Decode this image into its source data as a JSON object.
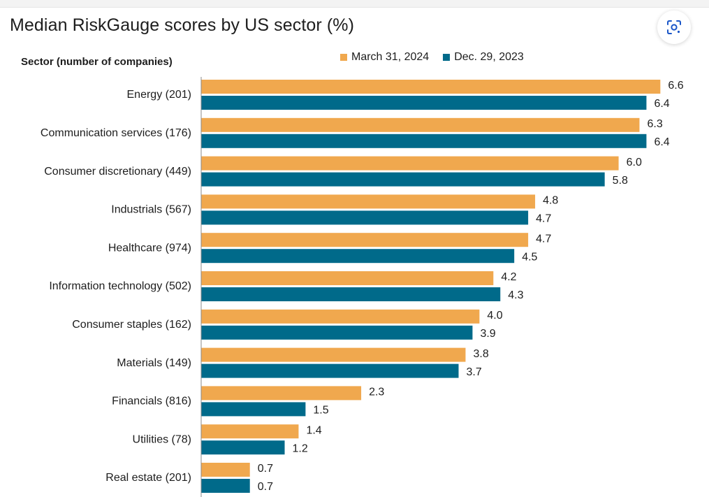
{
  "title": "Median RiskGauge scores by US sector (%)",
  "icons": {
    "lens": "google-lens-icon"
  },
  "chart_data": {
    "type": "bar",
    "orientation": "horizontal",
    "title": "Median RiskGauge scores by US sector (%)",
    "ylabel": "Sector (number of companies)",
    "xlim": [
      0,
      6.8
    ],
    "grid": false,
    "legend_position": "top",
    "categories": [
      "Energy (201)",
      "Communication services (176)",
      "Consumer discretionary (449)",
      "Industrials (567)",
      "Healthcare (974)",
      "Information technology (502)",
      "Consumer staples (162)",
      "Materials (149)",
      "Financials (816)",
      "Utilities (78)",
      "Real estate (201)"
    ],
    "series": [
      {
        "name": "March 31, 2024",
        "color": "#f0a84e",
        "values": [
          6.6,
          6.3,
          6.0,
          4.8,
          4.7,
          4.2,
          4.0,
          3.8,
          2.3,
          1.4,
          0.7
        ],
        "labels": [
          "6.6",
          "6.3",
          "6.0",
          "4.8",
          "4.7",
          "4.2",
          "4.0",
          "3.8",
          "2.3",
          "1.4",
          "0.7"
        ]
      },
      {
        "name": "Dec. 29, 2023",
        "color": "#006a8a",
        "values": [
          6.4,
          6.4,
          5.8,
          4.7,
          4.5,
          4.3,
          3.9,
          3.7,
          1.5,
          1.2,
          0.7
        ],
        "labels": [
          "6.4",
          "6.4",
          "5.8",
          "4.7",
          "4.5",
          "4.3",
          "3.9",
          "3.7",
          "1.5",
          "1.2",
          "0.7"
        ]
      }
    ]
  }
}
